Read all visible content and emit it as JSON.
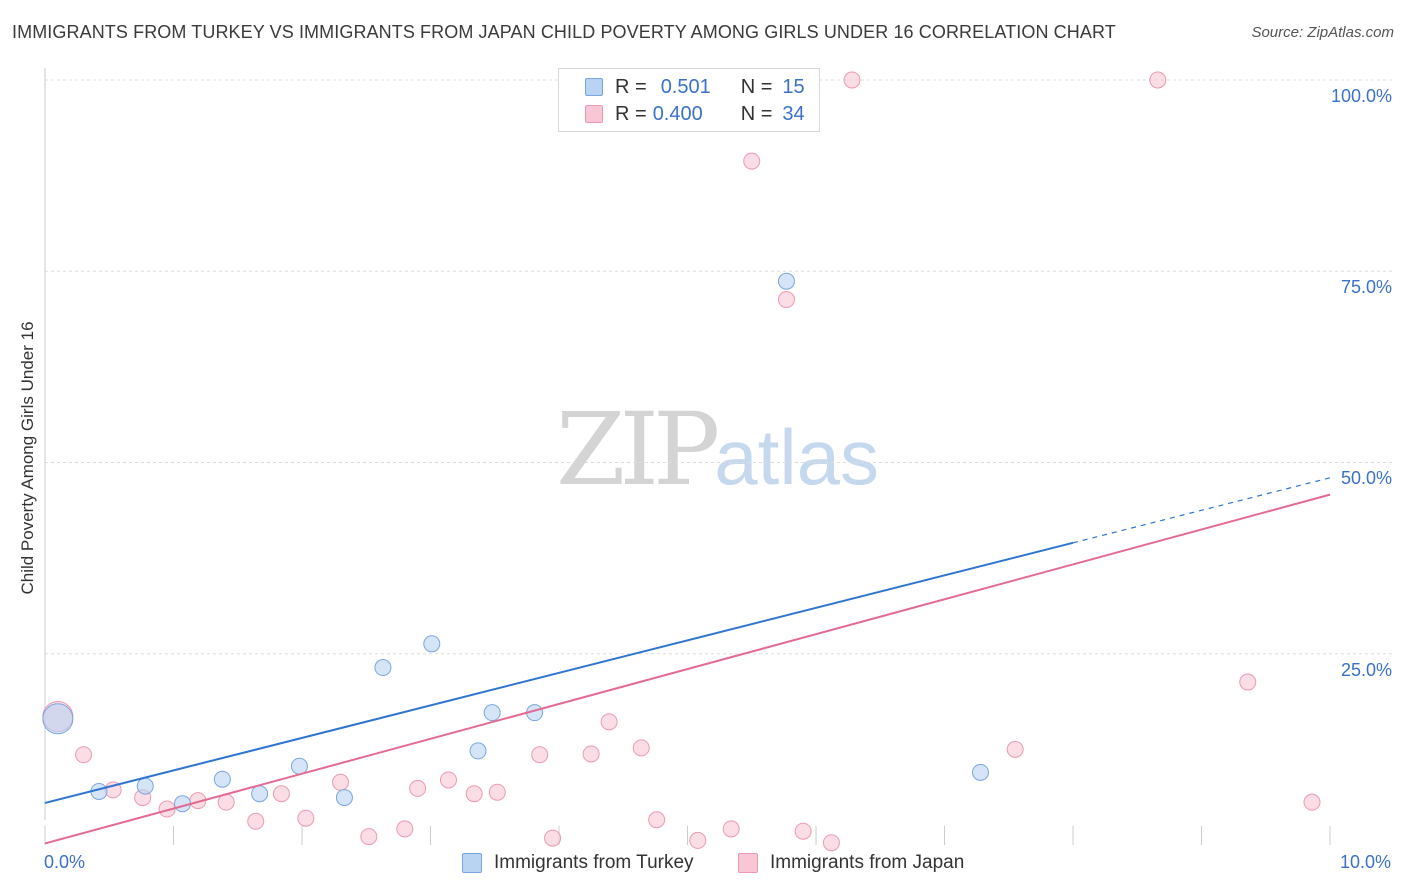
{
  "header": {
    "title": "IMMIGRANTS FROM TURKEY VS IMMIGRANTS FROM JAPAN CHILD POVERTY AMONG GIRLS UNDER 16 CORRELATION CHART",
    "source": "Source: ZipAtlas.com"
  },
  "watermark": {
    "zip": "ZIP",
    "atlas": "atlas"
  },
  "legend": {
    "turkey": {
      "r_label": "R =",
      "r_value": "0.501",
      "n_label": "N =",
      "n_value": "15"
    },
    "japan": {
      "r_label": "R =",
      "r_value": "0.400",
      "n_label": "N =",
      "n_value": "34"
    }
  },
  "bottom_legend": {
    "turkey": "Immigrants from Turkey",
    "japan": "Immigrants from Japan"
  },
  "colors": {
    "turkey_fill": "#b9d3f2",
    "turkey_stroke": "#7aa6de",
    "turkey_line": "#2f74d0",
    "japan_fill": "#f8c6d4",
    "japan_stroke": "#eb9ab2",
    "japan_line": "#e46a94",
    "tick_text": "#3a72c8",
    "grid": "#dddddd"
  },
  "chart_data": {
    "type": "scatter",
    "title": "IMMIGRANTS FROM TURKEY VS IMMIGRANTS FROM JAPAN CHILD POVERTY AMONG GIRLS UNDER 16 CORRELATION CHART",
    "xlabel": "",
    "ylabel": "Child Poverty Among Girls Under 16",
    "xlim": [
      0,
      10
    ],
    "ylim": [
      0,
      100
    ],
    "x_tick_labels": [
      "0.0%",
      "10.0%"
    ],
    "y_tick_labels": [
      "25.0%",
      "50.0%",
      "75.0%",
      "100.0%"
    ],
    "y_ticks": [
      25,
      50,
      75,
      100
    ],
    "grid": true,
    "legend_position": "top-center",
    "series": [
      {
        "name": "Immigrants from Turkey",
        "r": 0.501,
        "n": 15,
        "points": [
          {
            "x": 0.1,
            "y": 16.5,
            "size": "large"
          },
          {
            "x": 0.42,
            "y": 7.0
          },
          {
            "x": 0.78,
            "y": 7.7
          },
          {
            "x": 1.07,
            "y": 5.4
          },
          {
            "x": 1.38,
            "y": 8.6
          },
          {
            "x": 1.67,
            "y": 6.7
          },
          {
            "x": 1.98,
            "y": 10.3
          },
          {
            "x": 2.33,
            "y": 6.2
          },
          {
            "x": 2.63,
            "y": 23.2
          },
          {
            "x": 3.01,
            "y": 26.3
          },
          {
            "x": 3.37,
            "y": 12.3
          },
          {
            "x": 3.48,
            "y": 17.3
          },
          {
            "x": 3.81,
            "y": 17.3
          },
          {
            "x": 5.77,
            "y": 73.7
          },
          {
            "x": 7.28,
            "y": 9.5
          }
        ],
        "trend": {
          "x0": 0,
          "y0": 5.5,
          "x1": 8.0,
          "y1": 39.5,
          "dashed_to_x": 10.0,
          "dashed_to_y": 48.0
        }
      },
      {
        "name": "Immigrants from Japan",
        "r": 0.4,
        "n": 34,
        "points": [
          {
            "x": 0.1,
            "y": 16.8,
            "size": "large"
          },
          {
            "x": 0.3,
            "y": 11.8
          },
          {
            "x": 0.53,
            "y": 7.2
          },
          {
            "x": 0.76,
            "y": 6.2
          },
          {
            "x": 0.95,
            "y": 4.7
          },
          {
            "x": 1.19,
            "y": 5.8
          },
          {
            "x": 1.41,
            "y": 5.6
          },
          {
            "x": 1.64,
            "y": 3.1
          },
          {
            "x": 1.84,
            "y": 6.7
          },
          {
            "x": 2.03,
            "y": 3.5
          },
          {
            "x": 2.3,
            "y": 8.2
          },
          {
            "x": 2.52,
            "y": 1.1
          },
          {
            "x": 2.8,
            "y": 2.1
          },
          {
            "x": 2.9,
            "y": 7.4
          },
          {
            "x": 3.14,
            "y": 8.5
          },
          {
            "x": 3.34,
            "y": 6.7
          },
          {
            "x": 3.52,
            "y": 6.9
          },
          {
            "x": 3.85,
            "y": 11.8
          },
          {
            "x": 3.95,
            "y": 0.9
          },
          {
            "x": 4.25,
            "y": 11.9
          },
          {
            "x": 4.39,
            "y": 16.1
          },
          {
            "x": 4.64,
            "y": 12.7
          },
          {
            "x": 4.76,
            "y": 3.3
          },
          {
            "x": 5.08,
            "y": 0.6
          },
          {
            "x": 5.34,
            "y": 2.1
          },
          {
            "x": 5.5,
            "y": 89.4
          },
          {
            "x": 5.77,
            "y": 71.3
          },
          {
            "x": 5.9,
            "y": 1.8
          },
          {
            "x": 6.12,
            "y": 0.3
          },
          {
            "x": 6.28,
            "y": 100.0
          },
          {
            "x": 7.55,
            "y": 12.5
          },
          {
            "x": 8.66,
            "y": 100.0
          },
          {
            "x": 9.36,
            "y": 21.3
          },
          {
            "x": 9.86,
            "y": 5.6
          }
        ],
        "trend": {
          "x0": 0,
          "y0": 0.2,
          "x1": 10.0,
          "y1": 45.8
        }
      }
    ]
  }
}
